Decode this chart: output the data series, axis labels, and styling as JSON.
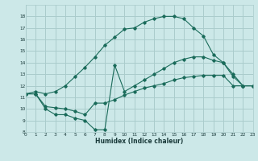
{
  "xlabel": "Humidex (Indice chaleur)",
  "bg_color": "#cce8e8",
  "grid_color": "#aacccc",
  "line_color": "#1a6b5a",
  "curves": [
    {
      "x": [
        0,
        1,
        2,
        3,
        4,
        5,
        6,
        7,
        8,
        9,
        10,
        11,
        12,
        13,
        14,
        15,
        16,
        17,
        18,
        19,
        20,
        21,
        22,
        23
      ],
      "y": [
        11.3,
        11.5,
        11.3,
        11.5,
        12.0,
        12.8,
        13.6,
        14.5,
        15.5,
        16.2,
        16.9,
        17.0,
        17.5,
        17.8,
        18.0,
        18.0,
        17.8,
        17.0,
        16.3,
        14.7,
        14.0,
        12.8,
        12.0,
        12.0
      ]
    },
    {
      "x": [
        0,
        1,
        2,
        3,
        4,
        5,
        6,
        7,
        8,
        9,
        10,
        11,
        12,
        13,
        14,
        15,
        16,
        17,
        18,
        19,
        20,
        21,
        22,
        23
      ],
      "y": [
        11.3,
        11.3,
        10.0,
        9.5,
        9.5,
        9.2,
        9.0,
        8.2,
        8.2,
        13.8,
        11.5,
        12.0,
        12.5,
        13.0,
        13.5,
        14.0,
        14.3,
        14.5,
        14.5,
        14.2,
        14.0,
        13.0,
        12.0,
        12.0
      ]
    },
    {
      "x": [
        0,
        1,
        2,
        3,
        4,
        5,
        6,
        7,
        8,
        9,
        10,
        11,
        12,
        13,
        14,
        15,
        16,
        17,
        18,
        19,
        20,
        21,
        22,
        23
      ],
      "y": [
        11.3,
        11.3,
        10.2,
        10.1,
        10.0,
        9.8,
        9.5,
        10.5,
        10.5,
        10.8,
        11.2,
        11.5,
        11.8,
        12.0,
        12.2,
        12.5,
        12.7,
        12.8,
        12.9,
        12.9,
        12.9,
        12.0,
        12.0,
        12.0
      ]
    }
  ],
  "xlim": [
    0,
    23
  ],
  "ylim": [
    8,
    19
  ],
  "yticks": [
    8,
    9,
    10,
    11,
    12,
    13,
    14,
    15,
    16,
    17,
    18
  ],
  "xticks": [
    0,
    1,
    2,
    3,
    4,
    5,
    6,
    7,
    8,
    9,
    10,
    11,
    12,
    13,
    14,
    15,
    16,
    17,
    18,
    19,
    20,
    21,
    22,
    23
  ]
}
